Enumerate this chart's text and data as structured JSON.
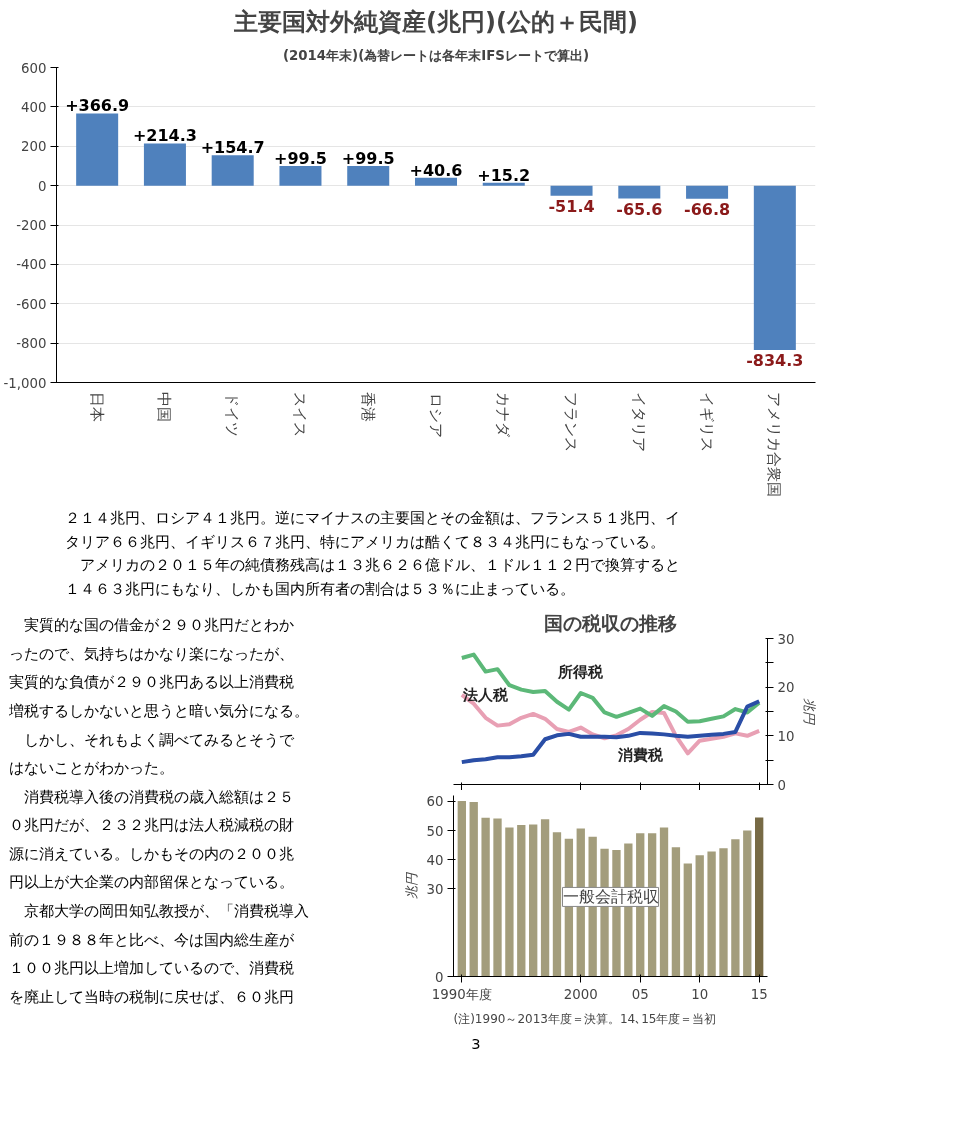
{
  "chart_data": [
    {
      "type": "bar",
      "title": "主要国対外純資産(兆円)(公的＋民間)",
      "subtitle": "(2014年末)(為替レートは各年末IFSレートで算出)",
      "categories": [
        "日本",
        "中国",
        "ドイツ",
        "スイス",
        "香港",
        "ロシア",
        "カナダ",
        "フランス",
        "イタリア",
        "イギリス",
        "アメリカ合衆国"
      ],
      "values": [
        366.9,
        214.3,
        154.7,
        99.5,
        99.5,
        40.6,
        15.2,
        -51.4,
        -65.6,
        -66.8,
        -834.3
      ],
      "value_labels": [
        "+366.9",
        "+214.3",
        "+154.7",
        "+99.5",
        "+99.5",
        "+40.6",
        "+15.2",
        "-51.4",
        "-65.6",
        "-66.8",
        "-834.3"
      ],
      "color": "#4f81bd",
      "ylim": [
        -1000,
        600
      ],
      "yticks": [
        {
          "value": -1000,
          "label": "-1,000"
        },
        -800,
        -600,
        -400,
        -200,
        0,
        200,
        400,
        600
      ],
      "grid": "y"
    },
    {
      "type": "other",
      "annotations": [
        "２１４兆円、ロシア４１兆円。逆にマイナスの主要国とその金額は、フランス５１兆円、イ",
        "タリア６６兆円、イギリス６７兆円、特にアメリカは酷くて８３４兆円にもなっている。",
        "　アメリカの２０１５年の純債務残高は１３兆６２６億ドル、１ドル１１２円で換算すると",
        "１４６３兆円にもなり、しかも国内所有者の割合は５３％に止まっている。"
      ]
    },
    {
      "type": "other",
      "annotations": [
        "　実質的な国の借金が２９０兆円だとわか",
        "ったので、気持ちはかなり楽になったが、",
        "実質的な負債が２９０兆円ある以上消費税",
        "増税するしかないと思うと暗い気分になる。",
        "　しかし、それもよく調べてみるとそうで",
        "はないことがわかった。",
        "　消費税導入後の消費税の歳入総額は２５",
        "０兆円だが、２３２兆円は法人税減税の財",
        "源に消えている。しかもその内の２００兆",
        "円以上が大企業の内部留保となっている。",
        "　京都大学の岡田知弘教授が、「消費税導入",
        "前の１９８８年と比べ、今は国内総生産が",
        "１００兆円以上増加しているので、消費税",
        "を廃止して当時の税制に戻せば、６０兆円"
      ]
    },
    {
      "type": "line",
      "title": "国の税収の推移",
      "ylabel": "兆円",
      "x": [
        1990,
        1991,
        1992,
        1993,
        1994,
        1995,
        1996,
        1997,
        1998,
        1999,
        2000,
        2001,
        2002,
        2003,
        2004,
        2005,
        2006,
        2007,
        2008,
        2009,
        2010,
        2011,
        2012,
        2013,
        2014,
        2015
      ],
      "series": [
        {
          "name": "法人税",
          "color": "#e8a0b4",
          "values": [
            18.4,
            16.6,
            13.7,
            12.1,
            12.4,
            13.7,
            14.5,
            13.5,
            11.4,
            10.8,
            11.7,
            10.3,
            9.5,
            10.1,
            11.4,
            13.3,
            14.9,
            14.7,
            10.0,
            6.4,
            9.0,
            9.4,
            9.8,
            10.5,
            10.0,
            11.0
          ]
        },
        {
          "name": "所得税",
          "color": "#5cb878",
          "values": [
            26.0,
            26.7,
            23.2,
            23.7,
            20.4,
            19.5,
            19.0,
            19.2,
            17.0,
            15.4,
            18.8,
            17.8,
            14.8,
            13.9,
            14.7,
            15.6,
            14.1,
            16.1,
            15.0,
            12.9,
            13.0,
            13.5,
            14.0,
            15.5,
            14.8,
            16.8
          ]
        },
        {
          "name": "消費税",
          "color": "#2a4ea6",
          "values": [
            4.6,
            5.0,
            5.2,
            5.6,
            5.6,
            5.8,
            6.1,
            9.3,
            10.1,
            10.4,
            9.8,
            9.8,
            9.8,
            9.7,
            10.0,
            10.6,
            10.5,
            10.3,
            10.0,
            9.8,
            10.0,
            10.2,
            10.4,
            10.8,
            16.0,
            17.1
          ]
        }
      ],
      "xlim": [
        1989.3,
        2015.7
      ],
      "xticks": [
        {
          "value": 1990,
          "label": null
        },
        {
          "value": 2000,
          "label": null
        },
        {
          "value": 2005,
          "label": null
        },
        {
          "value": 2010,
          "label": null
        },
        {
          "value": 2015,
          "label": null
        }
      ],
      "ylim": [
        0,
        30
      ],
      "yticks": [
        0,
        {
          "value": 5,
          "label": null
        },
        10,
        {
          "value": 15,
          "label": null
        },
        20,
        {
          "value": 25,
          "label": null
        },
        30
      ],
      "tick_labels": "y",
      "grid": false
    },
    {
      "type": "bar",
      "ylabel": "兆円",
      "x": [
        1990,
        1991,
        1992,
        1993,
        1994,
        1995,
        1996,
        1997,
        1998,
        1999,
        2000,
        2001,
        2002,
        2003,
        2004,
        2005,
        2006,
        2007,
        2008,
        2009,
        2010,
        2011,
        2012,
        2013,
        2014,
        2015
      ],
      "values": [
        60.1,
        59.8,
        54.4,
        54.1,
        51.0,
        51.9,
        52.1,
        53.9,
        49.4,
        47.2,
        50.7,
        47.9,
        43.8,
        43.3,
        45.6,
        49.1,
        49.1,
        51.0,
        44.3,
        38.7,
        41.5,
        42.8,
        43.9,
        47.0,
        50.0,
        54.5
      ],
      "colors": [
        "#a39d7c",
        "#a39d7c",
        "#a39d7c",
        "#a39d7c",
        "#a39d7c",
        "#a39d7c",
        "#a39d7c",
        "#a39d7c",
        "#a39d7c",
        "#a39d7c",
        "#a39d7c",
        "#a39d7c",
        "#a39d7c",
        "#a39d7c",
        "#a39d7c",
        "#a39d7c",
        "#a39d7c",
        "#a39d7c",
        "#a39d7c",
        "#a39d7c",
        "#a39d7c",
        "#a39d7c",
        "#a39d7c",
        "#a39d7c",
        "#a39d7c",
        "#776a45"
      ],
      "xlim": [
        1989.3,
        2015.7
      ],
      "xticks": [
        {
          "value": 1990,
          "label": "1990年度"
        },
        {
          "value": 2000,
          "label": "2000"
        },
        {
          "value": 2005,
          "label": "05"
        },
        {
          "value": 2010,
          "label": "10"
        },
        {
          "value": 2015,
          "label": "15"
        }
      ],
      "ylim": [
        0,
        62
      ],
      "yticks": [
        0,
        30,
        40,
        50,
        60
      ],
      "grid": false,
      "annotations": [
        "一般会計税収",
        "(注)1990～2013年度＝決算。14､15年度＝当初"
      ]
    },
    {
      "type": "other",
      "annotations": [
        "3"
      ]
    }
  ]
}
